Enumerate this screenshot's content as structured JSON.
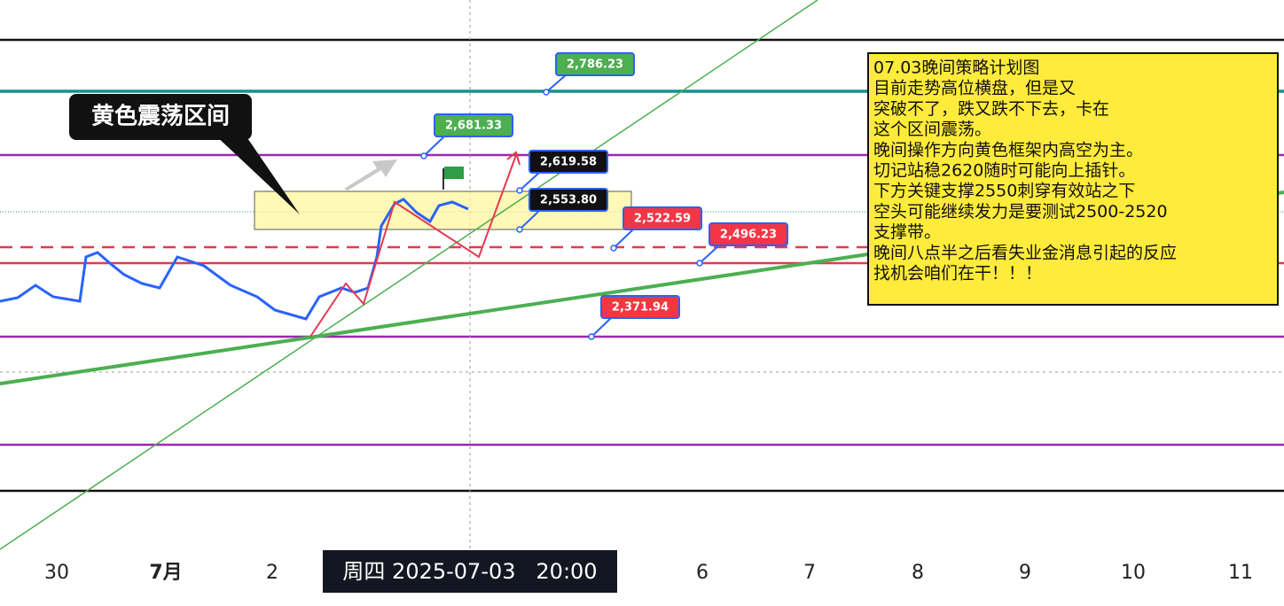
{
  "zone_label": "黄色震荡区间",
  "price_labels": [
    "2,786.23",
    "2,681.33",
    "2,619.58",
    "2,553.80",
    "2,522.59",
    "2,496.23",
    "2,371.94"
  ],
  "annotation_box": {
    "lines": [
      "07.03晚间策略计划图",
      "目前走势高位横盘，但是又",
      "突破不了，跌又跌不下去，卡在",
      "这个区间震荡。",
      "晚间操作方向黄色框架内高空为主。",
      "切记站稳2620随时可能向上插针。",
      "下方关键支撑2550刺穿有效站之下",
      "空头可能继续发力是要测试2500-2520",
      "支撑带。",
      "晚间八点半之后看失业金消息引起的反应",
      "找机会咱们在干！！！"
    ]
  },
  "x_axis": {
    "labels": [
      "30",
      "7月",
      "2",
      "6",
      "7",
      "8",
      "9",
      "10",
      "11"
    ],
    "crosshair_label": "周四 2025-07-03   20:00"
  }
}
